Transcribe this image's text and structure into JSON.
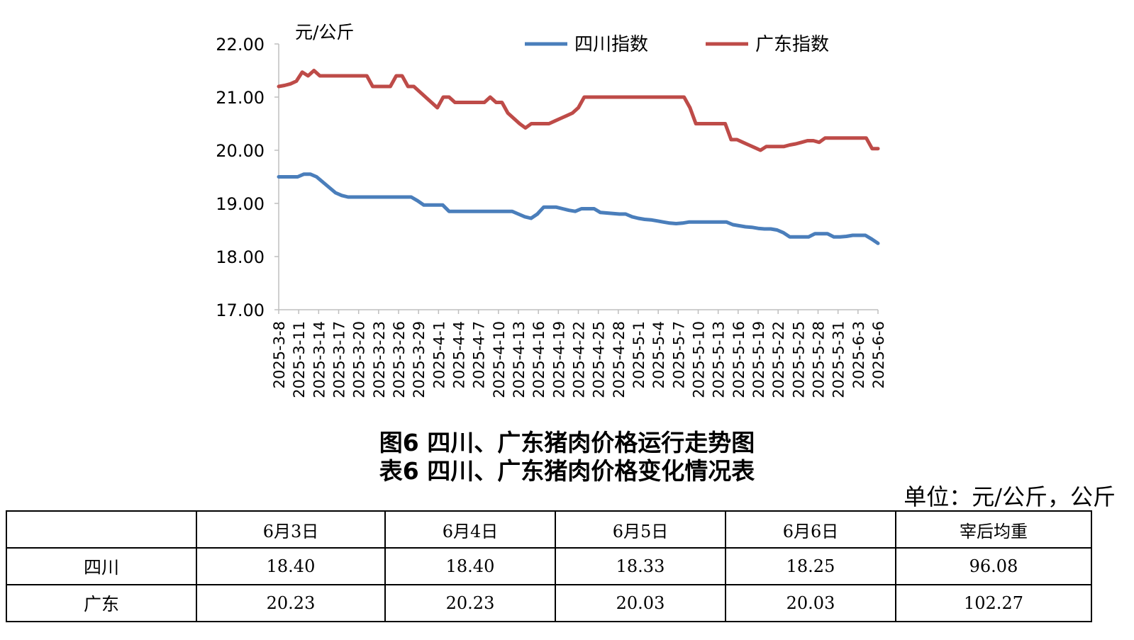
{
  "chart_data": {
    "type": "line",
    "ylabel": "元/公斤",
    "ylim": [
      17,
      22
    ],
    "y_ticks": [
      "17.00",
      "18.00",
      "19.00",
      "20.00",
      "21.00",
      "22.00"
    ],
    "x_ticks": [
      "2025-3-8",
      "2025-3-11",
      "2025-3-14",
      "2025-3-17",
      "2025-3-20",
      "2025-3-23",
      "2025-3-26",
      "2025-3-29",
      "2025-4-1",
      "2025-4-4",
      "2025-4-7",
      "2025-4-10",
      "2025-4-13",
      "2025-4-16",
      "2025-4-19",
      "2025-4-22",
      "2025-4-25",
      "2025-4-28",
      "2025-5-1",
      "2025-5-4",
      "2025-5-7",
      "2025-5-10",
      "2025-5-13",
      "2025-5-16",
      "2025-5-19",
      "2025-5-22",
      "2025-5-25",
      "2025-5-28",
      "2025-5-31",
      "2025-6-3",
      "2025-6-6"
    ],
    "series": [
      {
        "name": "四川指数",
        "color": "#4a7ebb",
        "values": [
          19.5,
          19.5,
          19.5,
          19.5,
          19.55,
          19.55,
          19.5,
          19.4,
          19.3,
          19.2,
          19.15,
          19.12,
          19.12,
          19.12,
          19.12,
          19.12,
          19.12,
          19.12,
          19.12,
          19.12,
          19.12,
          19.12,
          19.05,
          18.97,
          18.97,
          18.97,
          18.97,
          18.85,
          18.85,
          18.85,
          18.85,
          18.85,
          18.85,
          18.85,
          18.85,
          18.85,
          18.85,
          18.85,
          18.8,
          18.75,
          18.72,
          18.8,
          18.93,
          18.93,
          18.93,
          18.9,
          18.87,
          18.85,
          18.9,
          18.9,
          18.9,
          18.83,
          18.82,
          18.81,
          18.8,
          18.8,
          18.75,
          18.72,
          18.7,
          18.69,
          18.67,
          18.65,
          18.63,
          18.62,
          18.63,
          18.65,
          18.65,
          18.65,
          18.65,
          18.65,
          18.65,
          18.65,
          18.6,
          18.58,
          18.56,
          18.55,
          18.53,
          18.52,
          18.52,
          18.5,
          18.45,
          18.37,
          18.37,
          18.37,
          18.37,
          18.43,
          18.43,
          18.43,
          18.37,
          18.37,
          18.38,
          18.4,
          18.4,
          18.4,
          18.33,
          18.25
        ]
      },
      {
        "name": "广东指数",
        "color": "#be4b48",
        "values": [
          21.2,
          21.22,
          21.25,
          21.3,
          21.47,
          21.4,
          21.5,
          21.4,
          21.4,
          21.4,
          21.4,
          21.4,
          21.4,
          21.4,
          21.4,
          21.4,
          21.2,
          21.2,
          21.2,
          21.2,
          21.4,
          21.4,
          21.2,
          21.2,
          21.1,
          21.0,
          20.9,
          20.8,
          21.0,
          21.0,
          20.9,
          20.9,
          20.9,
          20.9,
          20.9,
          20.9,
          21.0,
          20.9,
          20.9,
          20.7,
          20.6,
          20.5,
          20.42,
          20.5,
          20.5,
          20.5,
          20.5,
          20.55,
          20.6,
          20.65,
          20.7,
          20.8,
          21.0,
          21.0,
          21.0,
          21.0,
          21.0,
          21.0,
          21.0,
          21.0,
          21.0,
          21.0,
          21.0,
          21.0,
          21.0,
          21.0,
          21.0,
          21.0,
          21.0,
          21.0,
          20.8,
          20.5,
          20.5,
          20.5,
          20.5,
          20.5,
          20.5,
          20.2,
          20.2,
          20.15,
          20.1,
          20.05,
          20.0,
          20.07,
          20.07,
          20.07,
          20.07,
          20.1,
          20.12,
          20.15,
          20.18,
          20.18,
          20.15,
          20.23,
          20.23,
          20.23,
          20.23,
          20.23,
          20.23,
          20.23,
          20.23,
          20.03,
          20.03
        ]
      }
    ]
  },
  "captions": {
    "figure": "图6  四川、广东猪肉价格运行走势图",
    "table": "表6  四川、广东猪肉价格变化情况表"
  },
  "table": {
    "unit": "单位：元/公斤，公斤",
    "headers": [
      "",
      "6月3日",
      "6月4日",
      "6月5日",
      "6月6日",
      "宰后均重"
    ],
    "rows": [
      {
        "label": "四川",
        "values": [
          "18.40",
          "18.40",
          "18.33",
          "18.25",
          "96.08"
        ]
      },
      {
        "label": "广东",
        "values": [
          "20.23",
          "20.23",
          "20.03",
          "20.03",
          "102.27"
        ]
      }
    ]
  }
}
